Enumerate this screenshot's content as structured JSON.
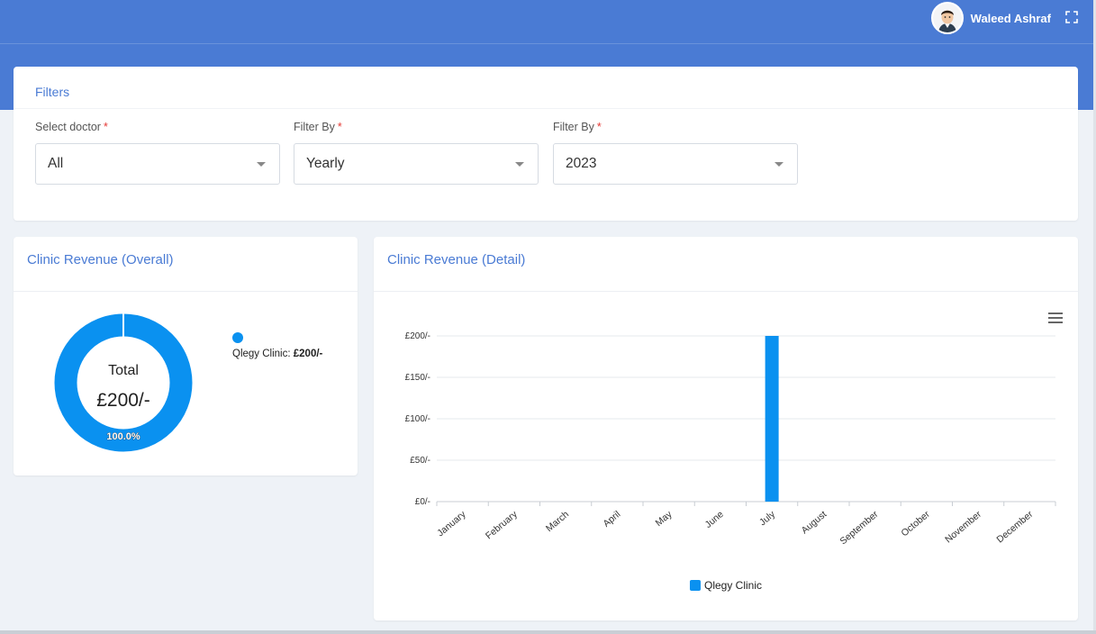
{
  "header": {
    "user_name": "Waleed Ashraf",
    "accent_color": "#4a7bd4",
    "icons": [
      "avatar",
      "fullscreen-icon"
    ]
  },
  "filters": {
    "title": "Filters",
    "fields": [
      {
        "label": "Select doctor",
        "required_mark": "*",
        "value": "All"
      },
      {
        "label": "Filter By",
        "required_mark": "*",
        "value": "Yearly"
      },
      {
        "label": "Filter By",
        "required_mark": "*",
        "value": "2023"
      }
    ]
  },
  "overall": {
    "title": "Clinic Revenue (Overall)",
    "total_label": "Total",
    "total_value": "£200/-",
    "legend_name": "Qlegy Clinic:",
    "legend_value": "£200/-",
    "slice_label": "100.0%"
  },
  "detail": {
    "title": "Clinic Revenue (Detail)",
    "menu_icon": "hamburger-menu-icon"
  },
  "chart_data": [
    {
      "type": "pie",
      "title": "Clinic Revenue (Overall)",
      "categories": [
        "Qlegy Clinic"
      ],
      "values": [
        200
      ],
      "slice_labels": [
        "100.0%"
      ],
      "center_text": [
        "Total",
        "£200/-"
      ],
      "colors": [
        "#0a91f0"
      ],
      "legend": "top-right"
    },
    {
      "type": "bar",
      "title": "Clinic Revenue (Detail)",
      "categories": [
        "January",
        "February",
        "March",
        "April",
        "May",
        "June",
        "July",
        "August",
        "September",
        "October",
        "November",
        "December"
      ],
      "series": [
        {
          "name": "Qlegy Clinic",
          "values": [
            0,
            0,
            0,
            0,
            0,
            0,
            200,
            0,
            0,
            0,
            0,
            0
          ],
          "color": "#0a91f0"
        }
      ],
      "ylim": [
        0,
        200
      ],
      "yticks": [
        0,
        50,
        100,
        150,
        200
      ],
      "ytick_labels": [
        "£0/-",
        "£50/-",
        "£100/-",
        "£150/-",
        "£200/-"
      ],
      "grid": true,
      "legend": "bottom-center"
    }
  ]
}
